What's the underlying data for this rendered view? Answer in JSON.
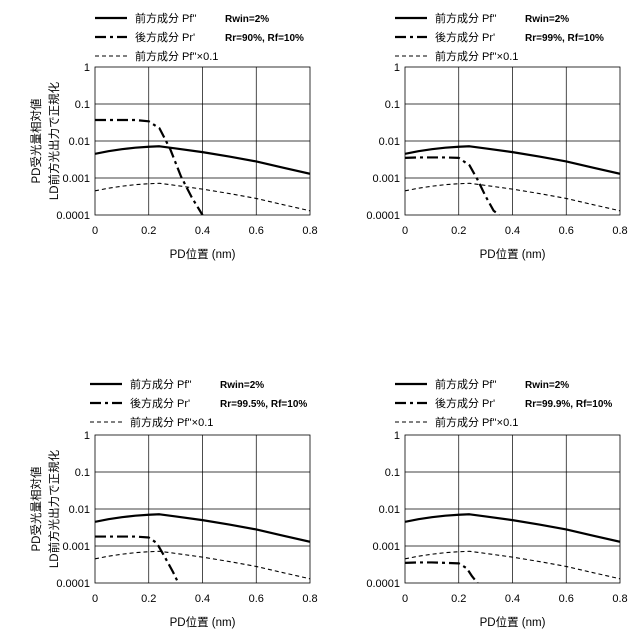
{
  "figure": {
    "ylabel_lines": [
      "PD受光量相対値",
      "LD前方光出力で正規化"
    ]
  },
  "chart_data": [
    {
      "type": "line",
      "xlabel": "PD位置 (nm)",
      "ylabel": "PD受光量相対値 LD前方光出力で正規化",
      "y_scale": "log",
      "xlim": [
        0,
        0.8
      ],
      "ylim": [
        0.0001,
        1
      ],
      "x_ticks": [
        "0",
        "0.2",
        "0.4",
        "0.6",
        "0.8"
      ],
      "y_ticks": [
        "1",
        "0.1",
        "0.01",
        "0.001",
        "0.0001"
      ],
      "grid": true,
      "legend_position": "top",
      "series": [
        {
          "name": "前方成分 Pf''",
          "note": "Rwin=2%",
          "style": "solid",
          "points": [
            [
              0,
              0.0045
            ],
            [
              0.05,
              0.0053
            ],
            [
              0.1,
              0.006
            ],
            [
              0.15,
              0.0066
            ],
            [
              0.2,
              0.007
            ],
            [
              0.24,
              0.0072
            ],
            [
              0.3,
              0.0063
            ],
            [
              0.4,
              0.005
            ],
            [
              0.5,
              0.0038
            ],
            [
              0.6,
              0.0028
            ],
            [
              0.7,
              0.0019
            ],
            [
              0.8,
              0.0013
            ]
          ]
        },
        {
          "name": "後方成分 Pr'",
          "note": "Rr=90%, Rf=10%",
          "style": "dashdot",
          "points": [
            [
              0,
              0.037
            ],
            [
              0.05,
              0.037
            ],
            [
              0.1,
              0.037
            ],
            [
              0.15,
              0.037
            ],
            [
              0.2,
              0.034
            ],
            [
              0.24,
              0.022
            ],
            [
              0.28,
              0.006
            ],
            [
              0.32,
              0.0011
            ],
            [
              0.36,
              0.0003
            ],
            [
              0.4,
              0.0001
            ]
          ]
        },
        {
          "name": "前方成分 Pf''×0.1",
          "note": "",
          "style": "dashed",
          "points": [
            [
              0,
              0.00045
            ],
            [
              0.05,
              0.00053
            ],
            [
              0.1,
              0.0006
            ],
            [
              0.15,
              0.00066
            ],
            [
              0.2,
              0.0007
            ],
            [
              0.24,
              0.00072
            ],
            [
              0.3,
              0.00063
            ],
            [
              0.4,
              0.0005
            ],
            [
              0.5,
              0.00038
            ],
            [
              0.6,
              0.00028
            ],
            [
              0.7,
              0.00019
            ],
            [
              0.8,
              0.00013
            ]
          ]
        }
      ]
    },
    {
      "type": "line",
      "xlabel": "PD位置 (nm)",
      "ylabel": "",
      "y_scale": "log",
      "xlim": [
        0,
        0.8
      ],
      "ylim": [
        0.0001,
        1
      ],
      "x_ticks": [
        "0",
        "0.2",
        "0.4",
        "0.6",
        "0.8"
      ],
      "y_ticks": [
        "1",
        "0.1",
        "0.01",
        "0.001",
        "0.0001"
      ],
      "grid": true,
      "legend_position": "top",
      "series": [
        {
          "name": "前方成分 Pf''",
          "note": "Rwin=2%",
          "style": "solid",
          "points": [
            [
              0,
              0.0045
            ],
            [
              0.05,
              0.0053
            ],
            [
              0.1,
              0.006
            ],
            [
              0.15,
              0.0066
            ],
            [
              0.2,
              0.007
            ],
            [
              0.24,
              0.0072
            ],
            [
              0.3,
              0.0063
            ],
            [
              0.4,
              0.005
            ],
            [
              0.5,
              0.0038
            ],
            [
              0.6,
              0.0028
            ],
            [
              0.7,
              0.0019
            ],
            [
              0.8,
              0.0013
            ]
          ]
        },
        {
          "name": "後方成分 Pr'",
          "note": "Rr=99%, Rf=10%",
          "style": "dashdot",
          "points": [
            [
              0,
              0.0035
            ],
            [
              0.05,
              0.0036
            ],
            [
              0.1,
              0.0036
            ],
            [
              0.15,
              0.0036
            ],
            [
              0.2,
              0.0035
            ],
            [
              0.24,
              0.0022
            ],
            [
              0.27,
              0.0009
            ],
            [
              0.3,
              0.00032
            ],
            [
              0.33,
              0.00013
            ],
            [
              0.35,
              0.0001
            ]
          ]
        },
        {
          "name": "前方成分 Pf''×0.1",
          "note": "",
          "style": "dashed",
          "points": [
            [
              0,
              0.00045
            ],
            [
              0.05,
              0.00053
            ],
            [
              0.1,
              0.0006
            ],
            [
              0.15,
              0.00066
            ],
            [
              0.2,
              0.0007
            ],
            [
              0.24,
              0.00072
            ],
            [
              0.3,
              0.00063
            ],
            [
              0.4,
              0.0005
            ],
            [
              0.5,
              0.00038
            ],
            [
              0.6,
              0.00028
            ],
            [
              0.7,
              0.00019
            ],
            [
              0.8,
              0.00013
            ]
          ]
        }
      ]
    },
    {
      "type": "line",
      "xlabel": "PD位置 (nm)",
      "ylabel": "PD受光量相対値 LD前方光出力で正規化",
      "y_scale": "log",
      "xlim": [
        0,
        0.8
      ],
      "ylim": [
        0.0001,
        1
      ],
      "x_ticks": [
        "0",
        "0.2",
        "0.4",
        "0.6",
        "0.8"
      ],
      "y_ticks": [
        "1",
        "0.1",
        "0.01",
        "0.001",
        "0.0001"
      ],
      "grid": true,
      "legend_position": "top",
      "series": [
        {
          "name": "前方成分 Pf''",
          "note": "Rwin=2%",
          "style": "solid",
          "points": [
            [
              0,
              0.0045
            ],
            [
              0.05,
              0.0053
            ],
            [
              0.1,
              0.006
            ],
            [
              0.15,
              0.0066
            ],
            [
              0.2,
              0.007
            ],
            [
              0.24,
              0.0072
            ],
            [
              0.3,
              0.0063
            ],
            [
              0.4,
              0.005
            ],
            [
              0.5,
              0.0038
            ],
            [
              0.6,
              0.0028
            ],
            [
              0.7,
              0.0019
            ],
            [
              0.8,
              0.0013
            ]
          ]
        },
        {
          "name": "後方成分 Pr'",
          "note": "Rr=99.5%, Rf=10%",
          "style": "dashdot",
          "points": [
            [
              0,
              0.0018
            ],
            [
              0.05,
              0.0018
            ],
            [
              0.1,
              0.0018
            ],
            [
              0.15,
              0.0018
            ],
            [
              0.2,
              0.0017
            ],
            [
              0.23,
              0.0012
            ],
            [
              0.26,
              0.0005
            ],
            [
              0.29,
              0.0002
            ],
            [
              0.31,
              0.0001
            ]
          ]
        },
        {
          "name": "前方成分 Pf''×0.1",
          "note": "",
          "style": "dashed",
          "points": [
            [
              0,
              0.00045
            ],
            [
              0.05,
              0.00053
            ],
            [
              0.1,
              0.0006
            ],
            [
              0.15,
              0.00066
            ],
            [
              0.2,
              0.0007
            ],
            [
              0.24,
              0.00072
            ],
            [
              0.3,
              0.00063
            ],
            [
              0.4,
              0.0005
            ],
            [
              0.5,
              0.00038
            ],
            [
              0.6,
              0.00028
            ],
            [
              0.7,
              0.00019
            ],
            [
              0.8,
              0.00013
            ]
          ]
        }
      ]
    },
    {
      "type": "line",
      "xlabel": "PD位置 (nm)",
      "ylabel": "",
      "y_scale": "log",
      "xlim": [
        0,
        0.8
      ],
      "ylim": [
        0.0001,
        1
      ],
      "x_ticks": [
        "0",
        "0.2",
        "0.4",
        "0.6",
        "0.8"
      ],
      "y_ticks": [
        "1",
        "0.1",
        "0.01",
        "0.001",
        "0.0001"
      ],
      "grid": true,
      "legend_position": "top",
      "series": [
        {
          "name": "前方成分 Pf''",
          "note": "Rwin=2%",
          "style": "solid",
          "points": [
            [
              0,
              0.0045
            ],
            [
              0.05,
              0.0053
            ],
            [
              0.1,
              0.006
            ],
            [
              0.15,
              0.0066
            ],
            [
              0.2,
              0.007
            ],
            [
              0.24,
              0.0072
            ],
            [
              0.3,
              0.0063
            ],
            [
              0.4,
              0.005
            ],
            [
              0.5,
              0.0038
            ],
            [
              0.6,
              0.0028
            ],
            [
              0.7,
              0.0019
            ],
            [
              0.8,
              0.0013
            ]
          ]
        },
        {
          "name": "後方成分 Pr'",
          "note": "Rr=99.9%, Rf=10%",
          "style": "dashdot",
          "points": [
            [
              0,
              0.00035
            ],
            [
              0.05,
              0.00036
            ],
            [
              0.1,
              0.00036
            ],
            [
              0.15,
              0.00035
            ],
            [
              0.2,
              0.00034
            ],
            [
              0.23,
              0.00025
            ],
            [
              0.25,
              0.00015
            ],
            [
              0.27,
              0.0001
            ]
          ]
        },
        {
          "name": "前方成分 Pf''×0.1",
          "note": "",
          "style": "dashed",
          "points": [
            [
              0,
              0.00045
            ],
            [
              0.05,
              0.00053
            ],
            [
              0.1,
              0.0006
            ],
            [
              0.15,
              0.00066
            ],
            [
              0.2,
              0.0007
            ],
            [
              0.24,
              0.00072
            ],
            [
              0.3,
              0.00063
            ],
            [
              0.4,
              0.0005
            ],
            [
              0.5,
              0.00038
            ],
            [
              0.6,
              0.00028
            ],
            [
              0.7,
              0.00019
            ],
            [
              0.8,
              0.00013
            ]
          ]
        }
      ]
    }
  ]
}
